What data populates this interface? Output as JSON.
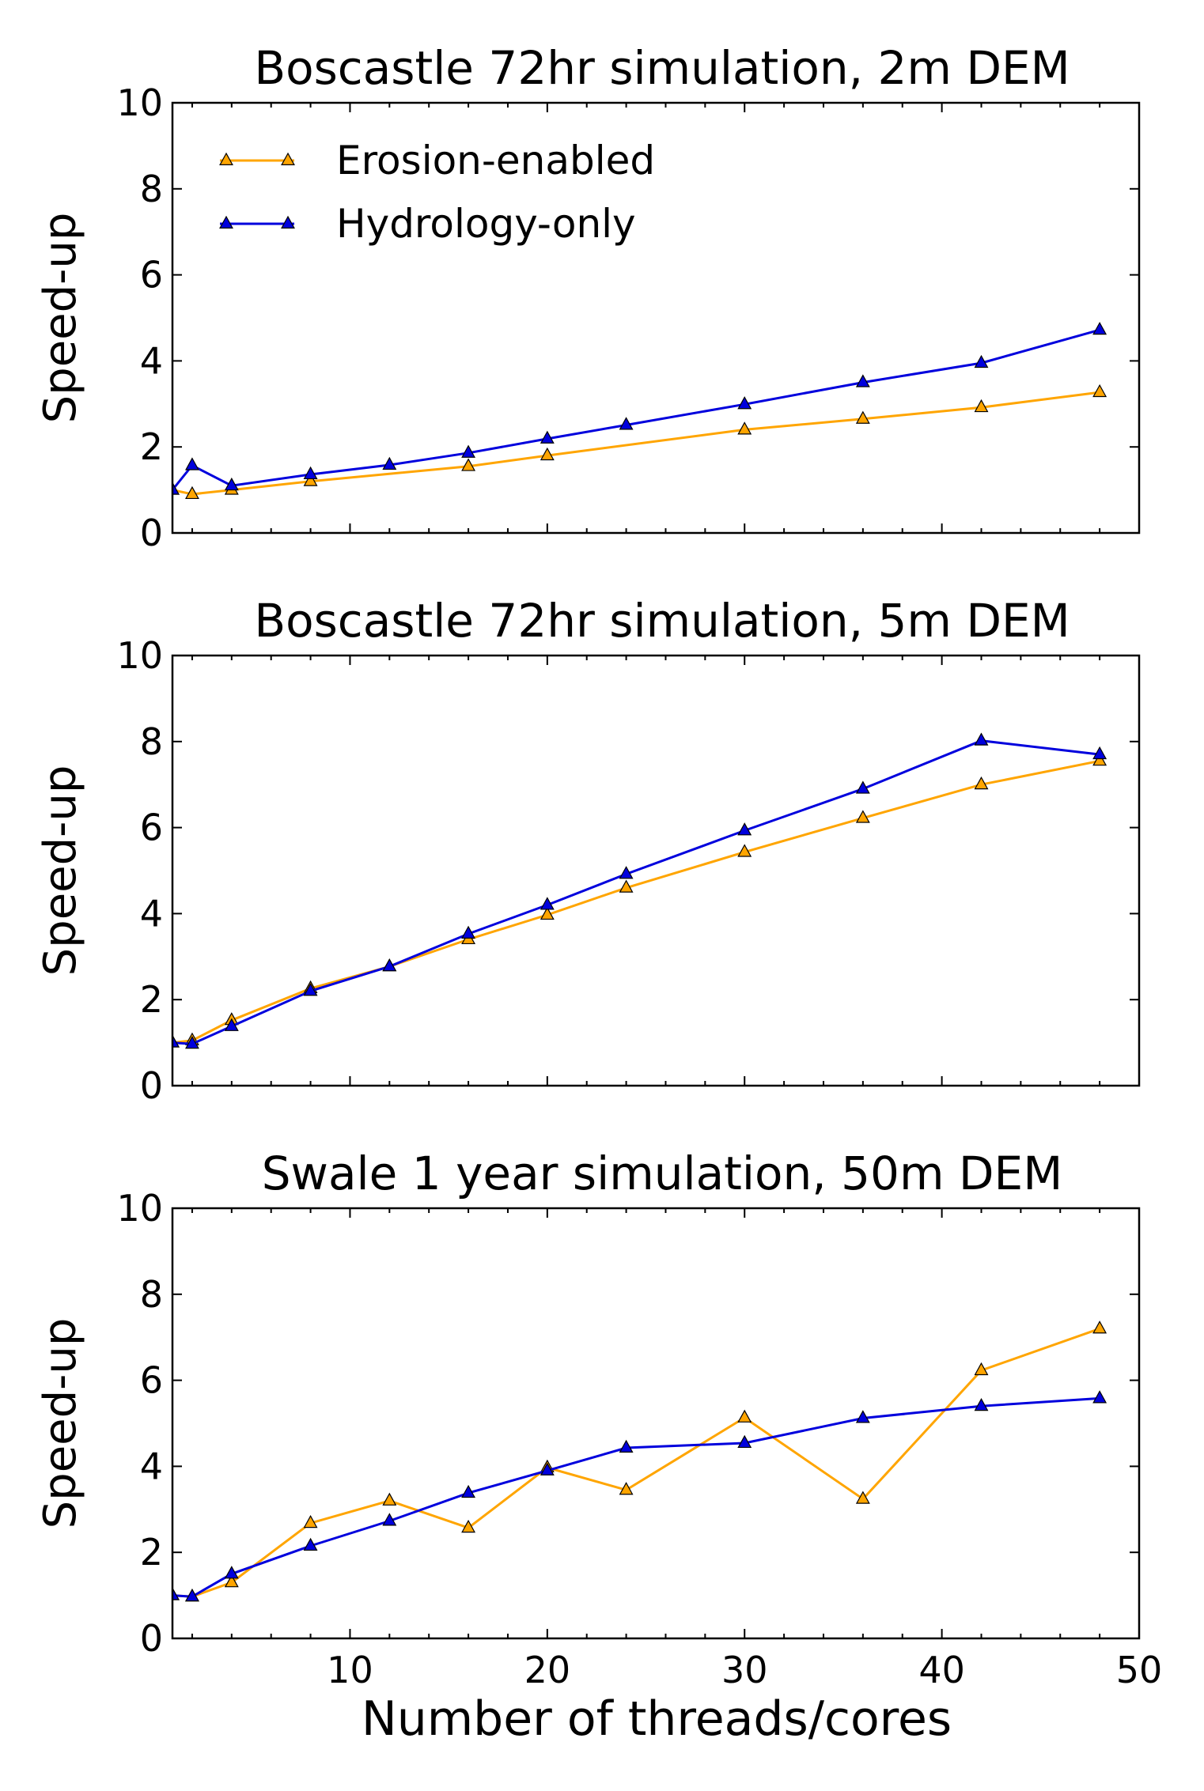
{
  "figure": {
    "xlabel": "Number of threads/cores"
  },
  "series_style": {
    "Erosion-enabled": "#FFA500",
    "Hydrology-only": "#0000DD"
  },
  "chart_data": [
    {
      "type": "line",
      "title": "Boscastle 72hr simulation, 2m DEM",
      "xlabel": "",
      "ylabel": "Speed-up",
      "xlim": [
        1,
        50
      ],
      "ylim": [
        0,
        10
      ],
      "xticks": [
        10,
        20,
        30,
        40,
        50
      ],
      "yticks": [
        0,
        2,
        4,
        6,
        8,
        10
      ],
      "show_xticklabels": false,
      "legend": "top-left",
      "series": [
        {
          "name": "Erosion-enabled",
          "x": [
            1,
            2,
            4,
            8,
            16,
            20,
            30,
            36,
            42,
            48
          ],
          "values": [
            1.0,
            0.9,
            1.0,
            1.2,
            1.55,
            1.8,
            2.4,
            2.65,
            2.92,
            3.27
          ]
        },
        {
          "name": "Hydrology-only",
          "x": [
            1,
            2,
            4,
            8,
            12,
            16,
            20,
            24,
            30,
            36,
            42,
            48
          ],
          "values": [
            1.0,
            1.57,
            1.1,
            1.36,
            1.58,
            1.86,
            2.19,
            2.51,
            2.99,
            3.5,
            3.95,
            4.72
          ]
        }
      ]
    },
    {
      "type": "line",
      "title": "Boscastle 72hr simulation, 5m DEM",
      "xlabel": "",
      "ylabel": "Speed-up",
      "xlim": [
        1,
        50
      ],
      "ylim": [
        0,
        10
      ],
      "xticks": [
        10,
        20,
        30,
        40,
        50
      ],
      "yticks": [
        0,
        2,
        4,
        6,
        8,
        10
      ],
      "show_xticklabels": false,
      "series": [
        {
          "name": "Erosion-enabled",
          "x": [
            1,
            2,
            4,
            8,
            12,
            16,
            20,
            24,
            30,
            36,
            42,
            48
          ],
          "values": [
            1.0,
            1.05,
            1.52,
            2.26,
            2.77,
            3.4,
            3.97,
            4.6,
            5.43,
            6.22,
            7.0,
            7.55
          ]
        },
        {
          "name": "Hydrology-only",
          "x": [
            1,
            2,
            4,
            8,
            12,
            16,
            20,
            24,
            30,
            36,
            42,
            48
          ],
          "values": [
            1.0,
            0.97,
            1.38,
            2.2,
            2.77,
            3.53,
            4.2,
            4.92,
            5.93,
            6.9,
            8.02,
            7.7
          ]
        }
      ]
    },
    {
      "type": "line",
      "title": "Swale 1 year simulation, 50m DEM",
      "xlabel": "Number of threads/cores",
      "ylabel": "Speed-up",
      "xlim": [
        1,
        50
      ],
      "ylim": [
        0,
        10
      ],
      "xticks": [
        10,
        20,
        30,
        40,
        50
      ],
      "yticks": [
        0,
        2,
        4,
        6,
        8,
        10
      ],
      "show_xticklabels": true,
      "series": [
        {
          "name": "Erosion-enabled",
          "x": [
            1,
            2,
            4,
            8,
            12,
            16,
            20,
            24,
            30,
            36,
            42,
            48
          ],
          "values": [
            1.0,
            0.97,
            1.3,
            2.68,
            3.2,
            2.57,
            3.97,
            3.45,
            5.13,
            3.24,
            6.23,
            7.2
          ]
        },
        {
          "name": "Hydrology-only",
          "x": [
            1,
            2,
            4,
            8,
            12,
            16,
            20,
            24,
            30,
            36,
            42,
            48
          ],
          "values": [
            1.0,
            0.97,
            1.5,
            2.15,
            2.73,
            3.38,
            3.9,
            4.43,
            4.54,
            5.12,
            5.4,
            5.58
          ]
        }
      ]
    }
  ]
}
